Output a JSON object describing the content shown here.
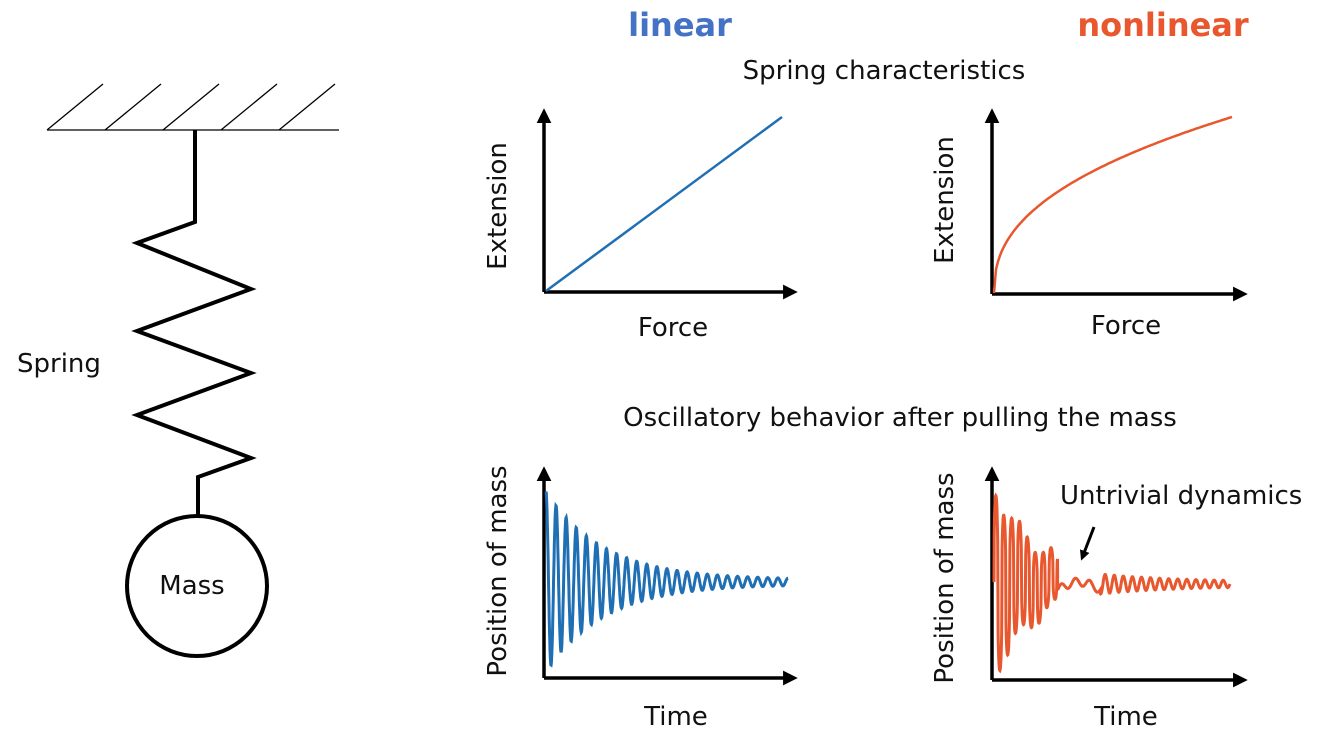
{
  "headings": {
    "linear": "linear",
    "nonlinear": "nonlinear"
  },
  "sections": {
    "spring_characteristics": "Spring characteristics",
    "oscillatory_behavior": "Oscillatory behavior after pulling the mass"
  },
  "spring_system": {
    "spring_label": "Spring",
    "mass_label": "Mass"
  },
  "charts": {
    "linear_characteristic": {
      "xlabel": "Force",
      "ylabel": "Extension"
    },
    "nonlinear_characteristic": {
      "xlabel": "Force",
      "ylabel": "Extension"
    },
    "linear_oscillation": {
      "xlabel": "Time",
      "ylabel": "Position of mass"
    },
    "nonlinear_oscillation": {
      "xlabel": "Time",
      "ylabel": "Position of mass"
    }
  },
  "annotation": {
    "text": "Untrivial dynamics"
  },
  "colors": {
    "linear_heading": "#4472c4",
    "nonlinear_heading": "#e8572e",
    "linear_curve": "#1f6fb4",
    "nonlinear_curve": "#e8572e"
  }
}
